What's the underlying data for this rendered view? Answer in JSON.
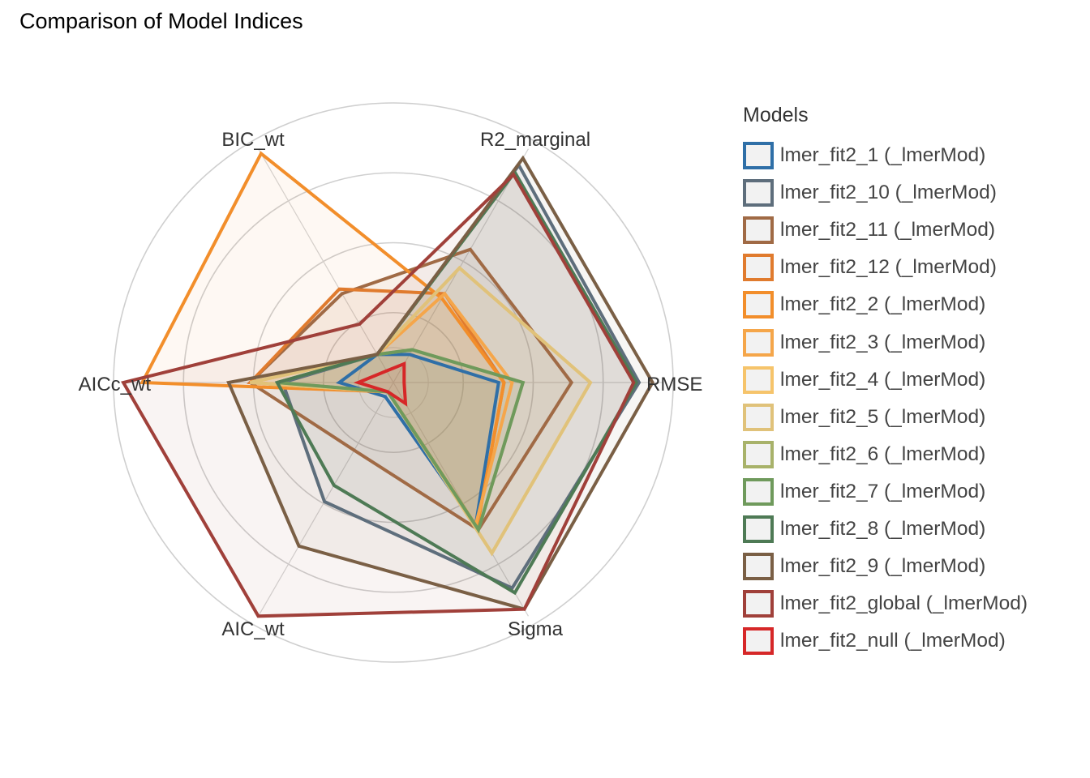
{
  "title": "Comparison of Model Indices",
  "chart_data": {
    "type": "radar",
    "title": "Comparison of Model Indices",
    "axes": [
      "RMSE",
      "R2_marginal",
      "BIC_wt",
      "AICc_wt",
      "AIC_wt",
      "Sigma"
    ],
    "rlim": [
      0,
      1
    ],
    "grid": true,
    "legend_title": "Models",
    "legend_position": "right",
    "series": [
      {
        "name": "lmer_fit2_1 (_lmerMod)",
        "color": "#2F6FA7",
        "values": [
          0.39,
          0.12,
          0.12,
          0.2,
          0.06,
          0.61
        ]
      },
      {
        "name": "lmer_fit2_10 (_lmerMod)",
        "color": "#5E6E7C",
        "values": [
          0.91,
          0.93,
          0.12,
          0.41,
          0.51,
          0.88
        ]
      },
      {
        "name": "lmer_fit2_11 (_lmerMod)",
        "color": "#A06A45",
        "values": [
          0.66,
          0.57,
          0.38,
          0.53,
          0.29,
          0.63
        ]
      },
      {
        "name": "lmer_fit2_12 (_lmerMod)",
        "color": "#E07B2E",
        "values": [
          0.41,
          0.38,
          0.4,
          0.53,
          0.04,
          0.62
        ]
      },
      {
        "name": "lmer_fit2_2 (_lmerMod)",
        "color": "#F28E2B",
        "values": [
          0.41,
          0.36,
          0.98,
          0.93,
          0.04,
          0.62
        ]
      },
      {
        "name": "lmer_fit2_3 (_lmerMod)",
        "color": "#F5A64A",
        "values": [
          0.44,
          0.38,
          0.12,
          0.53,
          0.04,
          0.61
        ]
      },
      {
        "name": "lmer_fit2_4 (_lmerMod)",
        "color": "#F6C46B",
        "values": [
          0.73,
          0.49,
          0.12,
          0.53,
          0.04,
          0.73
        ]
      },
      {
        "name": "lmer_fit2_5 (_lmerMod)",
        "color": "#E0C27A",
        "values": [
          0.73,
          0.49,
          0.12,
          0.53,
          0.04,
          0.73
        ]
      },
      {
        "name": "lmer_fit2_6 (_lmerMod)",
        "color": "#A8B26A",
        "values": [
          0.48,
          0.14,
          0.12,
          0.43,
          0.04,
          0.63
        ]
      },
      {
        "name": "lmer_fit2_7 (_lmerMod)",
        "color": "#6F9A5C",
        "values": [
          0.48,
          0.14,
          0.12,
          0.43,
          0.04,
          0.63
        ]
      },
      {
        "name": "lmer_fit2_8 (_lmerMod)",
        "color": "#4E7A55",
        "values": [
          0.9,
          0.9,
          0.12,
          0.43,
          0.44,
          0.9
        ]
      },
      {
        "name": "lmer_fit2_9 (_lmerMod)",
        "color": "#7A5F45",
        "values": [
          0.96,
          0.96,
          0.12,
          0.61,
          0.7,
          0.97
        ]
      },
      {
        "name": "lmer_fit2_global (_lmerMod)",
        "color": "#A0403A",
        "values": [
          0.89,
          0.89,
          0.25,
          1.0,
          1.0,
          0.97
        ]
      },
      {
        "name": "lmer_fit2_null (_lmerMod)",
        "color": "#D62728",
        "values": [
          0.04,
          0.08,
          0.05,
          0.13,
          0.04,
          0.09
        ]
      }
    ]
  }
}
